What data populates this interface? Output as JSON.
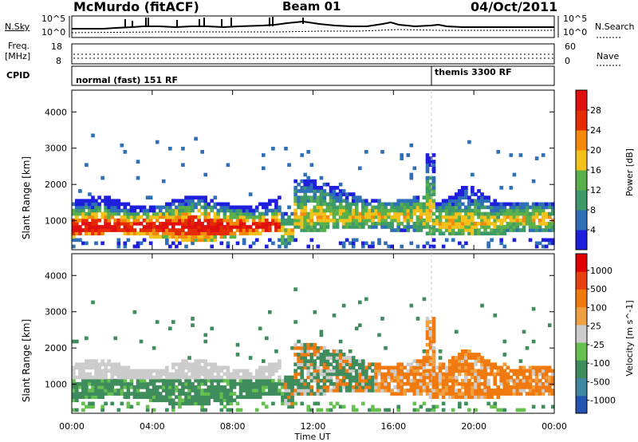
{
  "header": {
    "station": "McMurdo (fitACF)",
    "beam": "Beam 01",
    "date": "04/Oct/2011"
  },
  "noise_panel": {
    "left_label": "N.Sky",
    "right_label": "N.Search",
    "left_ticks": [
      "10^5",
      "10^0"
    ],
    "right_ticks": [
      "10^5",
      "10^0"
    ]
  },
  "freq_panel": {
    "left_label_line1": "Freq.",
    "left_label_line2": "[MHz]",
    "left_ticks": [
      "18",
      "8"
    ],
    "right_label": "Nave",
    "right_ticks": [
      "60",
      "0"
    ]
  },
  "cpid_panel": {
    "label": "CPID",
    "modes": [
      {
        "name": "normal (fast) 151 RF",
        "start_hour": 0
      },
      {
        "name": "themis 3300 RF",
        "start_hour": 18
      }
    ]
  },
  "x_axis": {
    "label": "Time UT",
    "ticks": [
      "00:00",
      "04:00",
      "08:00",
      "12:00",
      "16:00",
      "20:00",
      "00:00"
    ]
  },
  "chart_data": [
    {
      "type": "heatmap",
      "name": "power",
      "ylabel": "Slant Range [km]",
      "yticks": [
        "1000",
        "2000",
        "3000",
        "4000"
      ],
      "ylim": [
        200,
        4600
      ],
      "xlim_hours": [
        0,
        24
      ],
      "colorbar_label": "Power [dB]",
      "colorbar_ticks": [
        "4",
        "8",
        "12",
        "16",
        "20",
        "24",
        "28"
      ],
      "colorbar_colors": [
        "#1e1edc",
        "#2f6fb8",
        "#3f9a6a",
        "#5ab04a",
        "#f2c21a",
        "#f58a0a",
        "#e52c00",
        "#e01010"
      ]
    },
    {
      "type": "heatmap",
      "name": "velocity",
      "ylabel": "Slant Range [km]",
      "yticks": [
        "1000",
        "2000",
        "3000",
        "4000"
      ],
      "ylim": [
        200,
        4600
      ],
      "xlim_hours": [
        0,
        24
      ],
      "colorbar_label": "Velocity [m s^-1]",
      "colorbar_ticks": [
        "1000",
        "500",
        "100",
        "25",
        "-25",
        "-100",
        "-500",
        "-1000"
      ],
      "colorbar_colors": [
        "#2255b0",
        "#3f86a0",
        "#3f8c5c",
        "#66c050",
        "#cccccc",
        "#f0a040",
        "#f07a10",
        "#e84010",
        "#e00000"
      ]
    }
  ]
}
